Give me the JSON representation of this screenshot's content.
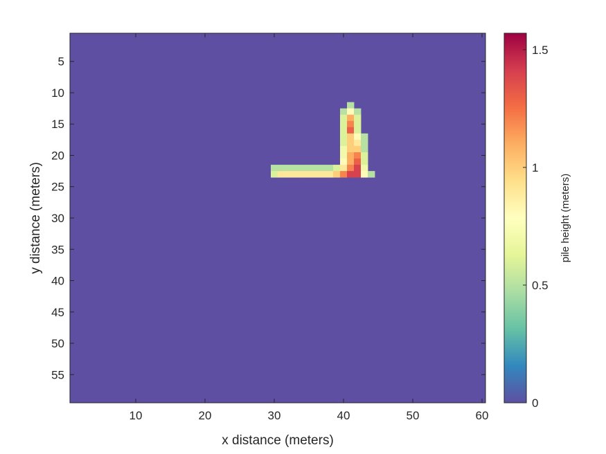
{
  "chart_data": {
    "type": "heatmap",
    "title": "",
    "xlabel": "x distance (meters)",
    "ylabel": "y distance (meters)",
    "x_range": [
      0.5,
      60.5
    ],
    "y_range": [
      0.5,
      59.5
    ],
    "y_reversed": true,
    "x_ticks": [
      10,
      20,
      30,
      40,
      50,
      60
    ],
    "y_ticks": [
      5,
      10,
      15,
      20,
      25,
      30,
      35,
      40,
      45,
      50,
      55
    ],
    "colorbar": {
      "label": "pile height (meters)",
      "range": [
        0,
        1.57
      ],
      "ticks": [
        {
          "value": 0,
          "label": "0"
        },
        {
          "value": 0.5,
          "label": "0.5"
        },
        {
          "value": 1,
          "label": "1"
        },
        {
          "value": 1.5,
          "label": "1.5"
        }
      ],
      "colormap": "spectral (low = blue-violet, high = dark red)"
    },
    "background_value": 0,
    "nonzero_cells": [
      [
        41,
        12,
        0.5
      ],
      [
        40,
        13,
        0.5
      ],
      [
        41,
        13,
        0.8
      ],
      [
        42,
        13,
        0.5
      ],
      [
        40,
        14,
        0.6
      ],
      [
        41,
        14,
        1.1
      ],
      [
        42,
        14,
        0.6
      ],
      [
        40,
        15,
        0.6
      ],
      [
        41,
        15,
        1.2
      ],
      [
        42,
        15,
        0.6
      ],
      [
        40,
        16,
        0.6
      ],
      [
        41,
        16,
        1.3
      ],
      [
        42,
        16,
        0.6
      ],
      [
        40,
        17,
        0.6
      ],
      [
        41,
        17,
        1.0
      ],
      [
        42,
        17,
        0.8
      ],
      [
        43,
        17,
        0.5
      ],
      [
        40,
        18,
        0.6
      ],
      [
        41,
        18,
        1.0
      ],
      [
        42,
        18,
        0.9
      ],
      [
        43,
        18,
        0.5
      ],
      [
        40,
        19,
        0.7
      ],
      [
        41,
        19,
        1.0
      ],
      [
        42,
        19,
        1.0
      ],
      [
        43,
        19,
        0.5
      ],
      [
        40,
        20,
        0.7
      ],
      [
        41,
        20,
        1.1
      ],
      [
        42,
        20,
        1.2
      ],
      [
        43,
        20,
        0.6
      ],
      [
        40,
        21,
        0.8
      ],
      [
        41,
        21,
        1.1
      ],
      [
        42,
        21,
        1.3
      ],
      [
        43,
        21,
        0.6
      ],
      [
        30,
        22,
        0.5
      ],
      [
        31,
        22,
        0.5
      ],
      [
        32,
        22,
        0.5
      ],
      [
        33,
        22,
        0.5
      ],
      [
        34,
        22,
        0.5
      ],
      [
        35,
        22,
        0.5
      ],
      [
        36,
        22,
        0.5
      ],
      [
        37,
        22,
        0.5
      ],
      [
        38,
        22,
        0.5
      ],
      [
        39,
        22,
        0.6
      ],
      [
        40,
        22,
        0.9
      ],
      [
        41,
        22,
        1.2
      ],
      [
        42,
        22,
        1.4
      ],
      [
        43,
        22,
        0.7
      ],
      [
        30,
        23,
        0.6
      ],
      [
        31,
        23,
        0.9
      ],
      [
        32,
        23,
        0.9
      ],
      [
        33,
        23,
        0.9
      ],
      [
        34,
        23,
        0.9
      ],
      [
        35,
        23,
        0.9
      ],
      [
        36,
        23,
        0.9
      ],
      [
        37,
        23,
        0.9
      ],
      [
        38,
        23,
        0.9
      ],
      [
        39,
        23,
        1.0
      ],
      [
        40,
        23,
        1.2
      ],
      [
        41,
        23,
        1.4
      ],
      [
        42,
        23,
        1.4
      ],
      [
        43,
        23,
        0.8
      ],
      [
        44,
        23,
        0.5
      ]
    ]
  }
}
